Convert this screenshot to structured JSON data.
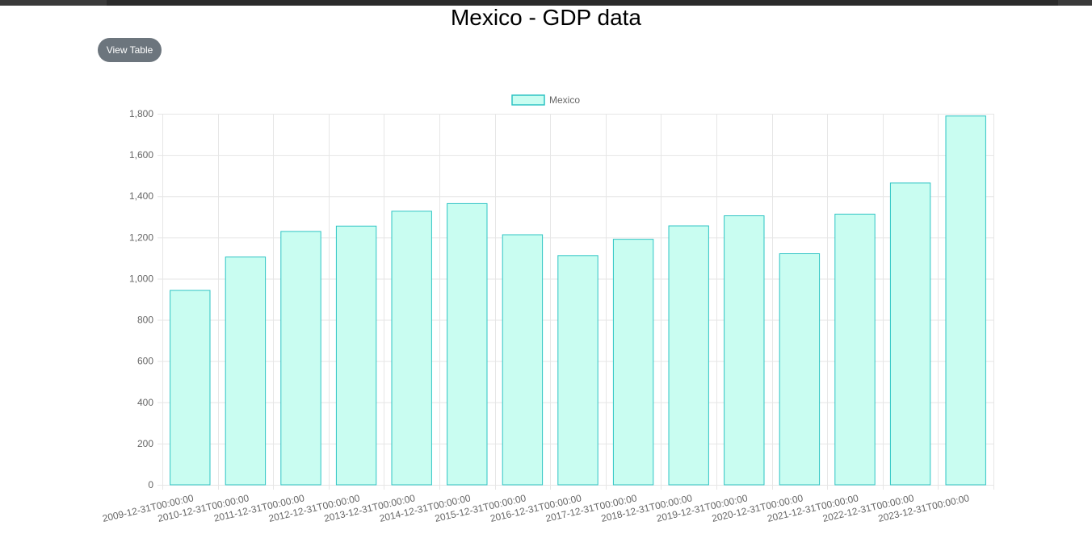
{
  "page": {
    "title": "Mexico - GDP data",
    "view_table_label": "View Table"
  },
  "colors": {
    "bar_fill": "#c9fdf1",
    "bar_stroke": "#2ec4c4",
    "grid": "#e6e6e6",
    "tick_text": "#666666",
    "button_bg": "#6c757d"
  },
  "chart_data": {
    "type": "bar",
    "categories": [
      "2009-12-31T00:00:00",
      "2010-12-31T00:00:00",
      "2011-12-31T00:00:00",
      "2012-12-31T00:00:00",
      "2013-12-31T00:00:00",
      "2014-12-31T00:00:00",
      "2015-12-31T00:00:00",
      "2016-12-31T00:00:00",
      "2017-12-31T00:00:00",
      "2018-12-31T00:00:00",
      "2019-12-31T00:00:00",
      "2020-12-31T00:00:00",
      "2021-12-31T00:00:00",
      "2022-12-31T00:00:00",
      "2023-12-31T00:00:00"
    ],
    "series": [
      {
        "name": "Mexico",
        "values": [
          943,
          1105,
          1229,
          1255,
          1327,
          1364,
          1213,
          1112,
          1191,
          1256,
          1305,
          1121,
          1313,
          1464,
          1789
        ]
      }
    ],
    "ylim": [
      0,
      1800
    ],
    "yticks": [
      "0",
      "200",
      "400",
      "600",
      "800",
      "1,000",
      "1,200",
      "1,400",
      "1,600",
      "1,800"
    ],
    "ytick_values": [
      0,
      200,
      400,
      600,
      800,
      1000,
      1200,
      1400,
      1600,
      1800
    ],
    "grid": true,
    "legend_position": "top"
  }
}
